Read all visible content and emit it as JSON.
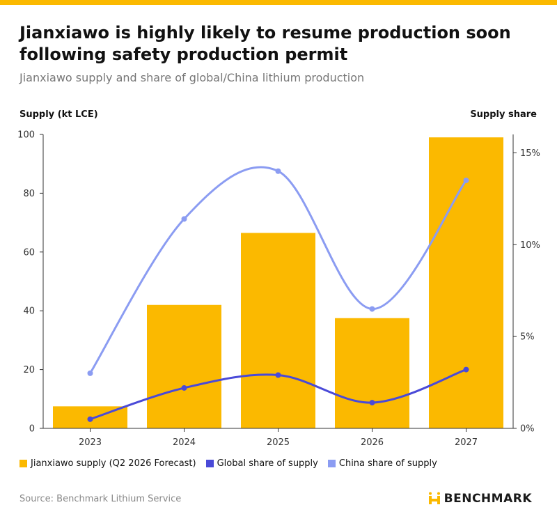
{
  "header": {
    "title": "Jianxiawo is highly likely to resume production soon following safety production permit",
    "subtitle": "Jianxiawo supply and share of global/China lithium production"
  },
  "footer": {
    "source": "Source: Benchmark Lithium Service",
    "brand": "BENCHMARK"
  },
  "colors": {
    "accent": "#fbb900",
    "bar": "#fbb900",
    "global_line": "#4a4ad8",
    "china_line": "#8b9cf2"
  },
  "chart_data": {
    "type": "bar",
    "categories": [
      "2023",
      "2024",
      "2025",
      "2026",
      "2027"
    ],
    "ylabel": "Supply (kt LCE)",
    "ylabel_right": "Supply share",
    "ylim": [
      0,
      100
    ],
    "yticks": [
      "0",
      "20",
      "40",
      "60",
      "80",
      "100"
    ],
    "ylim_right": [
      0,
      0.16
    ],
    "yticks_right": [
      "0%",
      "5%",
      "10%",
      "15%"
    ],
    "grid": false,
    "legend_position": "bottom",
    "series": [
      {
        "name": "Jianxiawo supply (Q2 2026 Forecast)",
        "type": "bar",
        "axis": "left",
        "values": [
          7.5,
          42,
          66.5,
          37.5,
          99
        ]
      },
      {
        "name": "Global share of supply",
        "type": "line",
        "axis": "right",
        "values": [
          0.005,
          0.022,
          0.029,
          0.014,
          0.032
        ]
      },
      {
        "name": "China share of supply",
        "type": "line",
        "axis": "right",
        "values": [
          0.03,
          0.114,
          0.14,
          0.065,
          0.135
        ]
      }
    ]
  }
}
